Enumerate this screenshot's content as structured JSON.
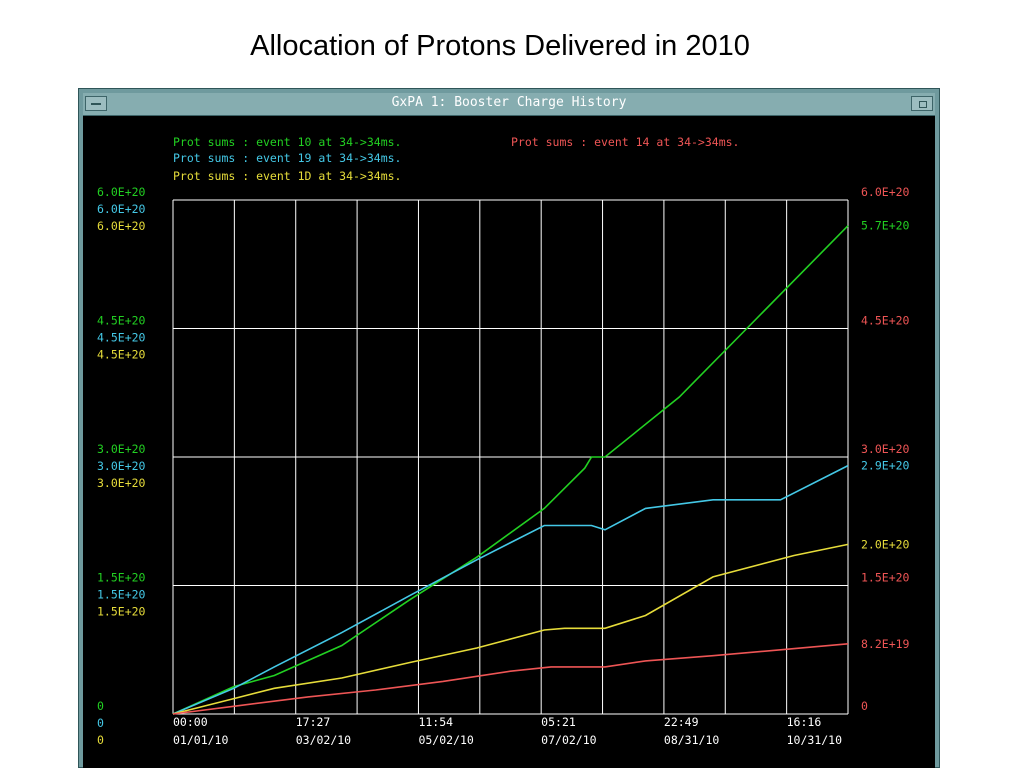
{
  "slide_title": "Allocation of Protons Delivered in 2010",
  "window": {
    "title": "GxPA 1: Booster Charge History"
  },
  "colors": {
    "green": "#22d022",
    "cyan": "#44c8e6",
    "yellow": "#e6dc3a",
    "red": "#ee5555",
    "grid": "#ffffff"
  },
  "chart_data": {
    "type": "line",
    "title": "Allocation of Protons Delivered in 2010",
    "grid": true,
    "x_ticks": [
      {
        "time": "00:00",
        "date": "01/01/10"
      },
      {
        "time": "17:27",
        "date": "03/02/10"
      },
      {
        "time": "11:54",
        "date": "05/02/10"
      },
      {
        "time": "05:21",
        "date": "07/02/10"
      },
      {
        "time": "22:49",
        "date": "08/31/10"
      },
      {
        "time": "16:16",
        "date": "10/31/10"
      }
    ],
    "left_axes": [
      {
        "color": "green",
        "ylim": [
          0,
          6e+20
        ],
        "ticks": [
          "6.0E+20",
          "4.5E+20",
          "3.0E+20",
          "1.5E+20",
          "0"
        ]
      },
      {
        "color": "cyan",
        "ylim": [
          0,
          6e+20
        ],
        "ticks": [
          "6.0E+20",
          "4.5E+20",
          "3.0E+20",
          "1.5E+20",
          "0"
        ]
      },
      {
        "color": "yellow",
        "ylim": [
          0,
          6e+20
        ],
        "ticks": [
          "6.0E+20",
          "4.5E+20",
          "3.0E+20",
          "1.5E+20",
          "0"
        ]
      }
    ],
    "right_axis": {
      "color": "red",
      "ylim": [
        0,
        6e+20
      ],
      "ticks": [
        "6.0E+20",
        "4.5E+20",
        "3.0E+20",
        "1.5E+20",
        "0"
      ]
    },
    "series": [
      {
        "name": "Prot sums : event 10 at 34->34ms.",
        "color": "green",
        "current_label": "5.7E+20",
        "x": [
          0,
          9,
          15,
          25,
          35,
          45,
          55,
          61,
          62,
          64,
          75,
          85,
          100
        ],
        "y": [
          0,
          3.2e+19,
          4.5e+19,
          8e+19,
          1.33e+20,
          1.83e+20,
          2.4e+20,
          2.87e+20,
          3e+20,
          3e+20,
          3.7e+20,
          4.5e+20,
          5.7e+20
        ]
      },
      {
        "name": "Prot sums : event 19 at 34->34ms.",
        "color": "cyan",
        "current_label": "2.9E+20",
        "x": [
          0,
          9,
          15,
          25,
          35,
          45,
          55,
          58,
          62,
          64,
          70,
          80,
          90,
          100
        ],
        "y": [
          0,
          3e+19,
          5.5e+19,
          9.5e+19,
          1.38e+20,
          1.8e+20,
          2.2e+20,
          2.2e+20,
          2.2e+20,
          2.15e+20,
          2.4e+20,
          2.5e+20,
          2.5e+20,
          2.9e+20
        ]
      },
      {
        "name": "Prot sums : event 1D at 34->34ms.",
        "color": "yellow",
        "current_label": "2.0E+20",
        "x": [
          0,
          9,
          15,
          25,
          35,
          45,
          55,
          58,
          64,
          70,
          80,
          92,
          100
        ],
        "y": [
          0,
          1.8e+19,
          3e+19,
          4.2e+19,
          6e+19,
          7.7e+19,
          9.8e+19,
          1e+20,
          1e+20,
          1.15e+20,
          1.6e+20,
          1.85e+20,
          1.98e+20
        ]
      },
      {
        "name": "Prot sums : event 14 at 34->34ms.",
        "color": "red",
        "current_label": "8.2E+19",
        "x": [
          0,
          10,
          20,
          30,
          40,
          50,
          56,
          62,
          64,
          70,
          80,
          90,
          100
        ],
        "y": [
          0,
          1e+19,
          2e+19,
          2.8e+19,
          3.8e+19,
          5e+19,
          5.5e+19,
          5.5e+19,
          5.5e+19,
          6.2e+19,
          6.8e+19,
          7.5e+19,
          8.2e+19
        ]
      }
    ]
  }
}
